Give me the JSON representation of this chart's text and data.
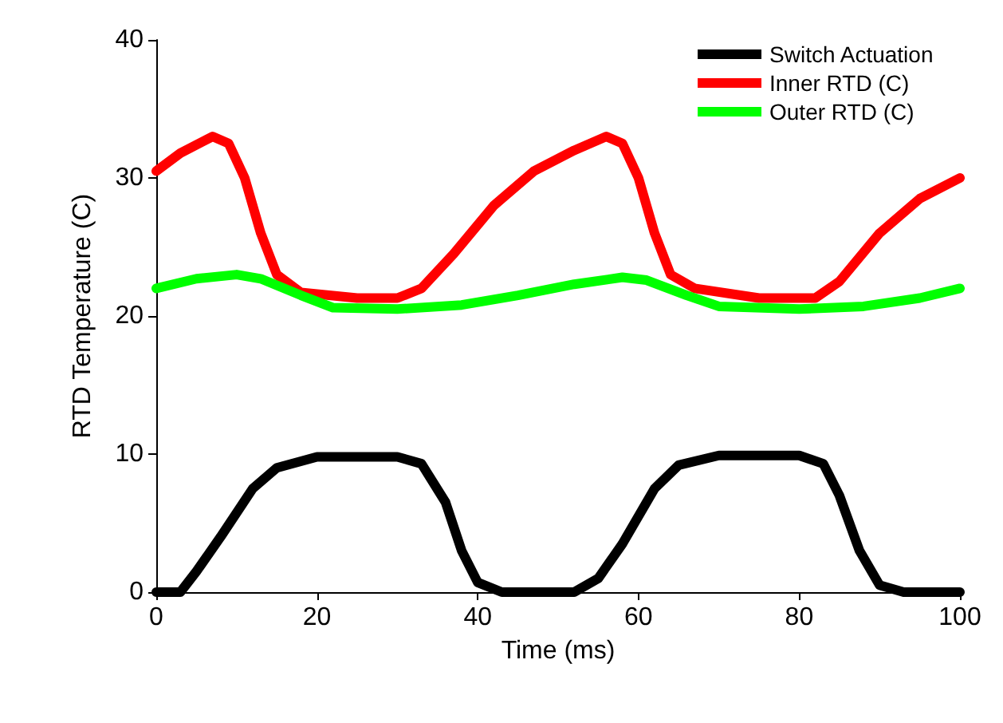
{
  "chart_data": {
    "type": "line",
    "xlabel": "Time (ms)",
    "ylabel": "RTD Temperature (C)",
    "xlim": [
      0,
      100
    ],
    "xticks": [
      0,
      20,
      40,
      60,
      80,
      100
    ],
    "ylim": [
      0,
      40
    ],
    "yticks": [
      0,
      10,
      20,
      30,
      40
    ],
    "grid": false,
    "legend": "top right",
    "marker": "none",
    "line_style": "solid",
    "series": [
      {
        "name": "Switch Actuation",
        "color": "#000000",
        "x": [
          0,
          3,
          5,
          8,
          12,
          15,
          20,
          30,
          33,
          36,
          38,
          40,
          43,
          52,
          55,
          58,
          62,
          65,
          70,
          80,
          83,
          85,
          87.5,
          90,
          93,
          100
        ],
        "values": [
          0,
          0,
          1.5,
          4,
          7.5,
          9,
          9.8,
          9.8,
          9.3,
          6.5,
          3,
          0.7,
          0,
          0,
          1,
          3.5,
          7.5,
          9.2,
          9.9,
          9.9,
          9.3,
          7,
          3,
          0.5,
          0,
          0
        ]
      },
      {
        "name": "Inner RTD (C)",
        "color": "#ff0000",
        "x": [
          0,
          3,
          7,
          9,
          11,
          13,
          15,
          18,
          25,
          30,
          33,
          37,
          42,
          47,
          52,
          56,
          58,
          60,
          62,
          64,
          67,
          75,
          82,
          85,
          90,
          95,
          100
        ],
        "values": [
          30.5,
          31.8,
          33,
          32.5,
          30,
          26,
          23,
          21.7,
          21.3,
          21.3,
          22,
          24.5,
          28,
          30.5,
          32,
          33,
          32.5,
          30,
          26,
          23,
          22,
          21.3,
          21.3,
          22.5,
          26,
          28.5,
          30
        ]
      },
      {
        "name": "Outer RTD (C)",
        "color": "#00ff00",
        "x": [
          0,
          5,
          10,
          13,
          18,
          22,
          30,
          38,
          45,
          52,
          58,
          61,
          66,
          70,
          80,
          88,
          95,
          100
        ],
        "values": [
          22,
          22.7,
          23,
          22.7,
          21.5,
          20.6,
          20.5,
          20.8,
          21.5,
          22.3,
          22.8,
          22.6,
          21.5,
          20.7,
          20.5,
          20.7,
          21.3,
          22
        ]
      }
    ]
  }
}
